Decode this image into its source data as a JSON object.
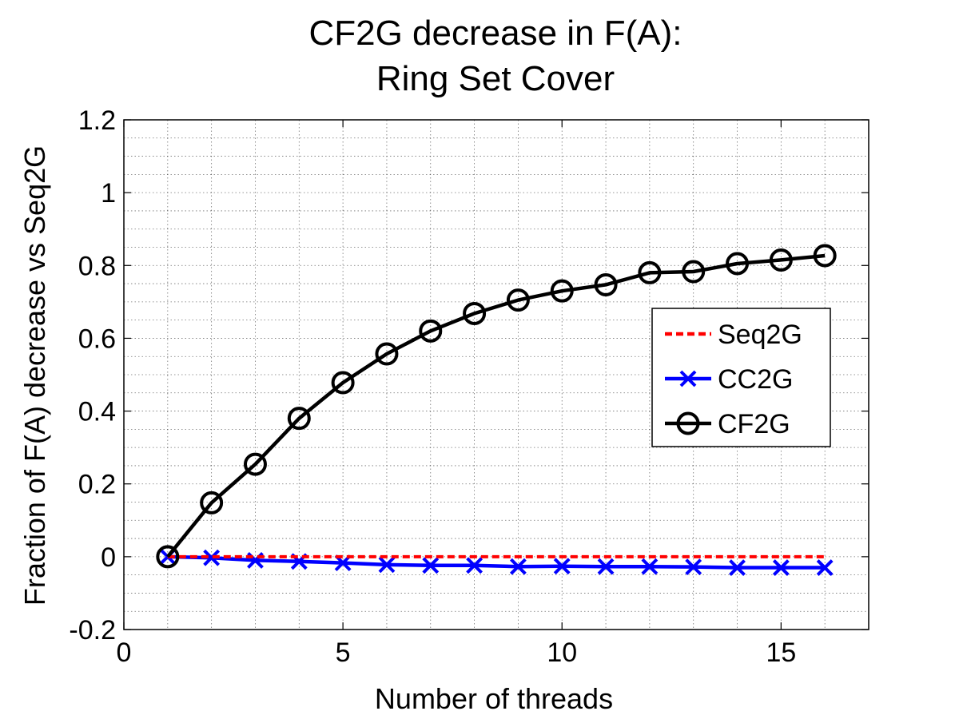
{
  "chart_data": {
    "type": "line",
    "title": [
      "CF2G decrease in F(A):",
      "Ring Set Cover"
    ],
    "xlabel": "Number of threads",
    "ylabel": "Fraction of F(A) decrease vs Seq2G",
    "xlim": [
      0,
      17
    ],
    "ylim": [
      -0.2,
      1.2
    ],
    "xticks": [
      0,
      5,
      10,
      15
    ],
    "yticks": [
      -0.2,
      0,
      0.2,
      0.4,
      0.6,
      0.8,
      1,
      1.2
    ],
    "xtick_labels": [
      "0",
      "5",
      "10",
      "15"
    ],
    "ytick_labels": [
      "-0.2",
      "0",
      "0.2",
      "0.4",
      "0.6",
      "0.8",
      "1",
      "1.2"
    ],
    "grid": true,
    "minor_grid": true,
    "legend_position": "right",
    "x": [
      1,
      2,
      3,
      4,
      5,
      6,
      7,
      8,
      9,
      10,
      11,
      12,
      13,
      14,
      15,
      16
    ],
    "series": [
      {
        "name": "Seq2G",
        "color": "#ff0000",
        "style": "dashed",
        "marker": "none",
        "values": [
          0,
          0,
          0,
          0,
          0,
          0,
          0,
          0,
          0,
          0,
          0,
          0,
          0,
          0,
          0,
          0
        ]
      },
      {
        "name": "CC2G",
        "color": "#0000ff",
        "style": "solid",
        "marker": "x",
        "values": [
          0,
          -0.003,
          -0.01,
          -0.013,
          -0.017,
          -0.022,
          -0.024,
          -0.024,
          -0.027,
          -0.026,
          -0.027,
          -0.027,
          -0.028,
          -0.03,
          -0.03,
          -0.03
        ]
      },
      {
        "name": "CF2G",
        "color": "#000000",
        "style": "solid",
        "marker": "circle",
        "values": [
          0,
          0.148,
          0.254,
          0.38,
          0.478,
          0.557,
          0.62,
          0.668,
          0.705,
          0.73,
          0.747,
          0.78,
          0.783,
          0.805,
          0.815,
          0.827
        ]
      }
    ]
  }
}
